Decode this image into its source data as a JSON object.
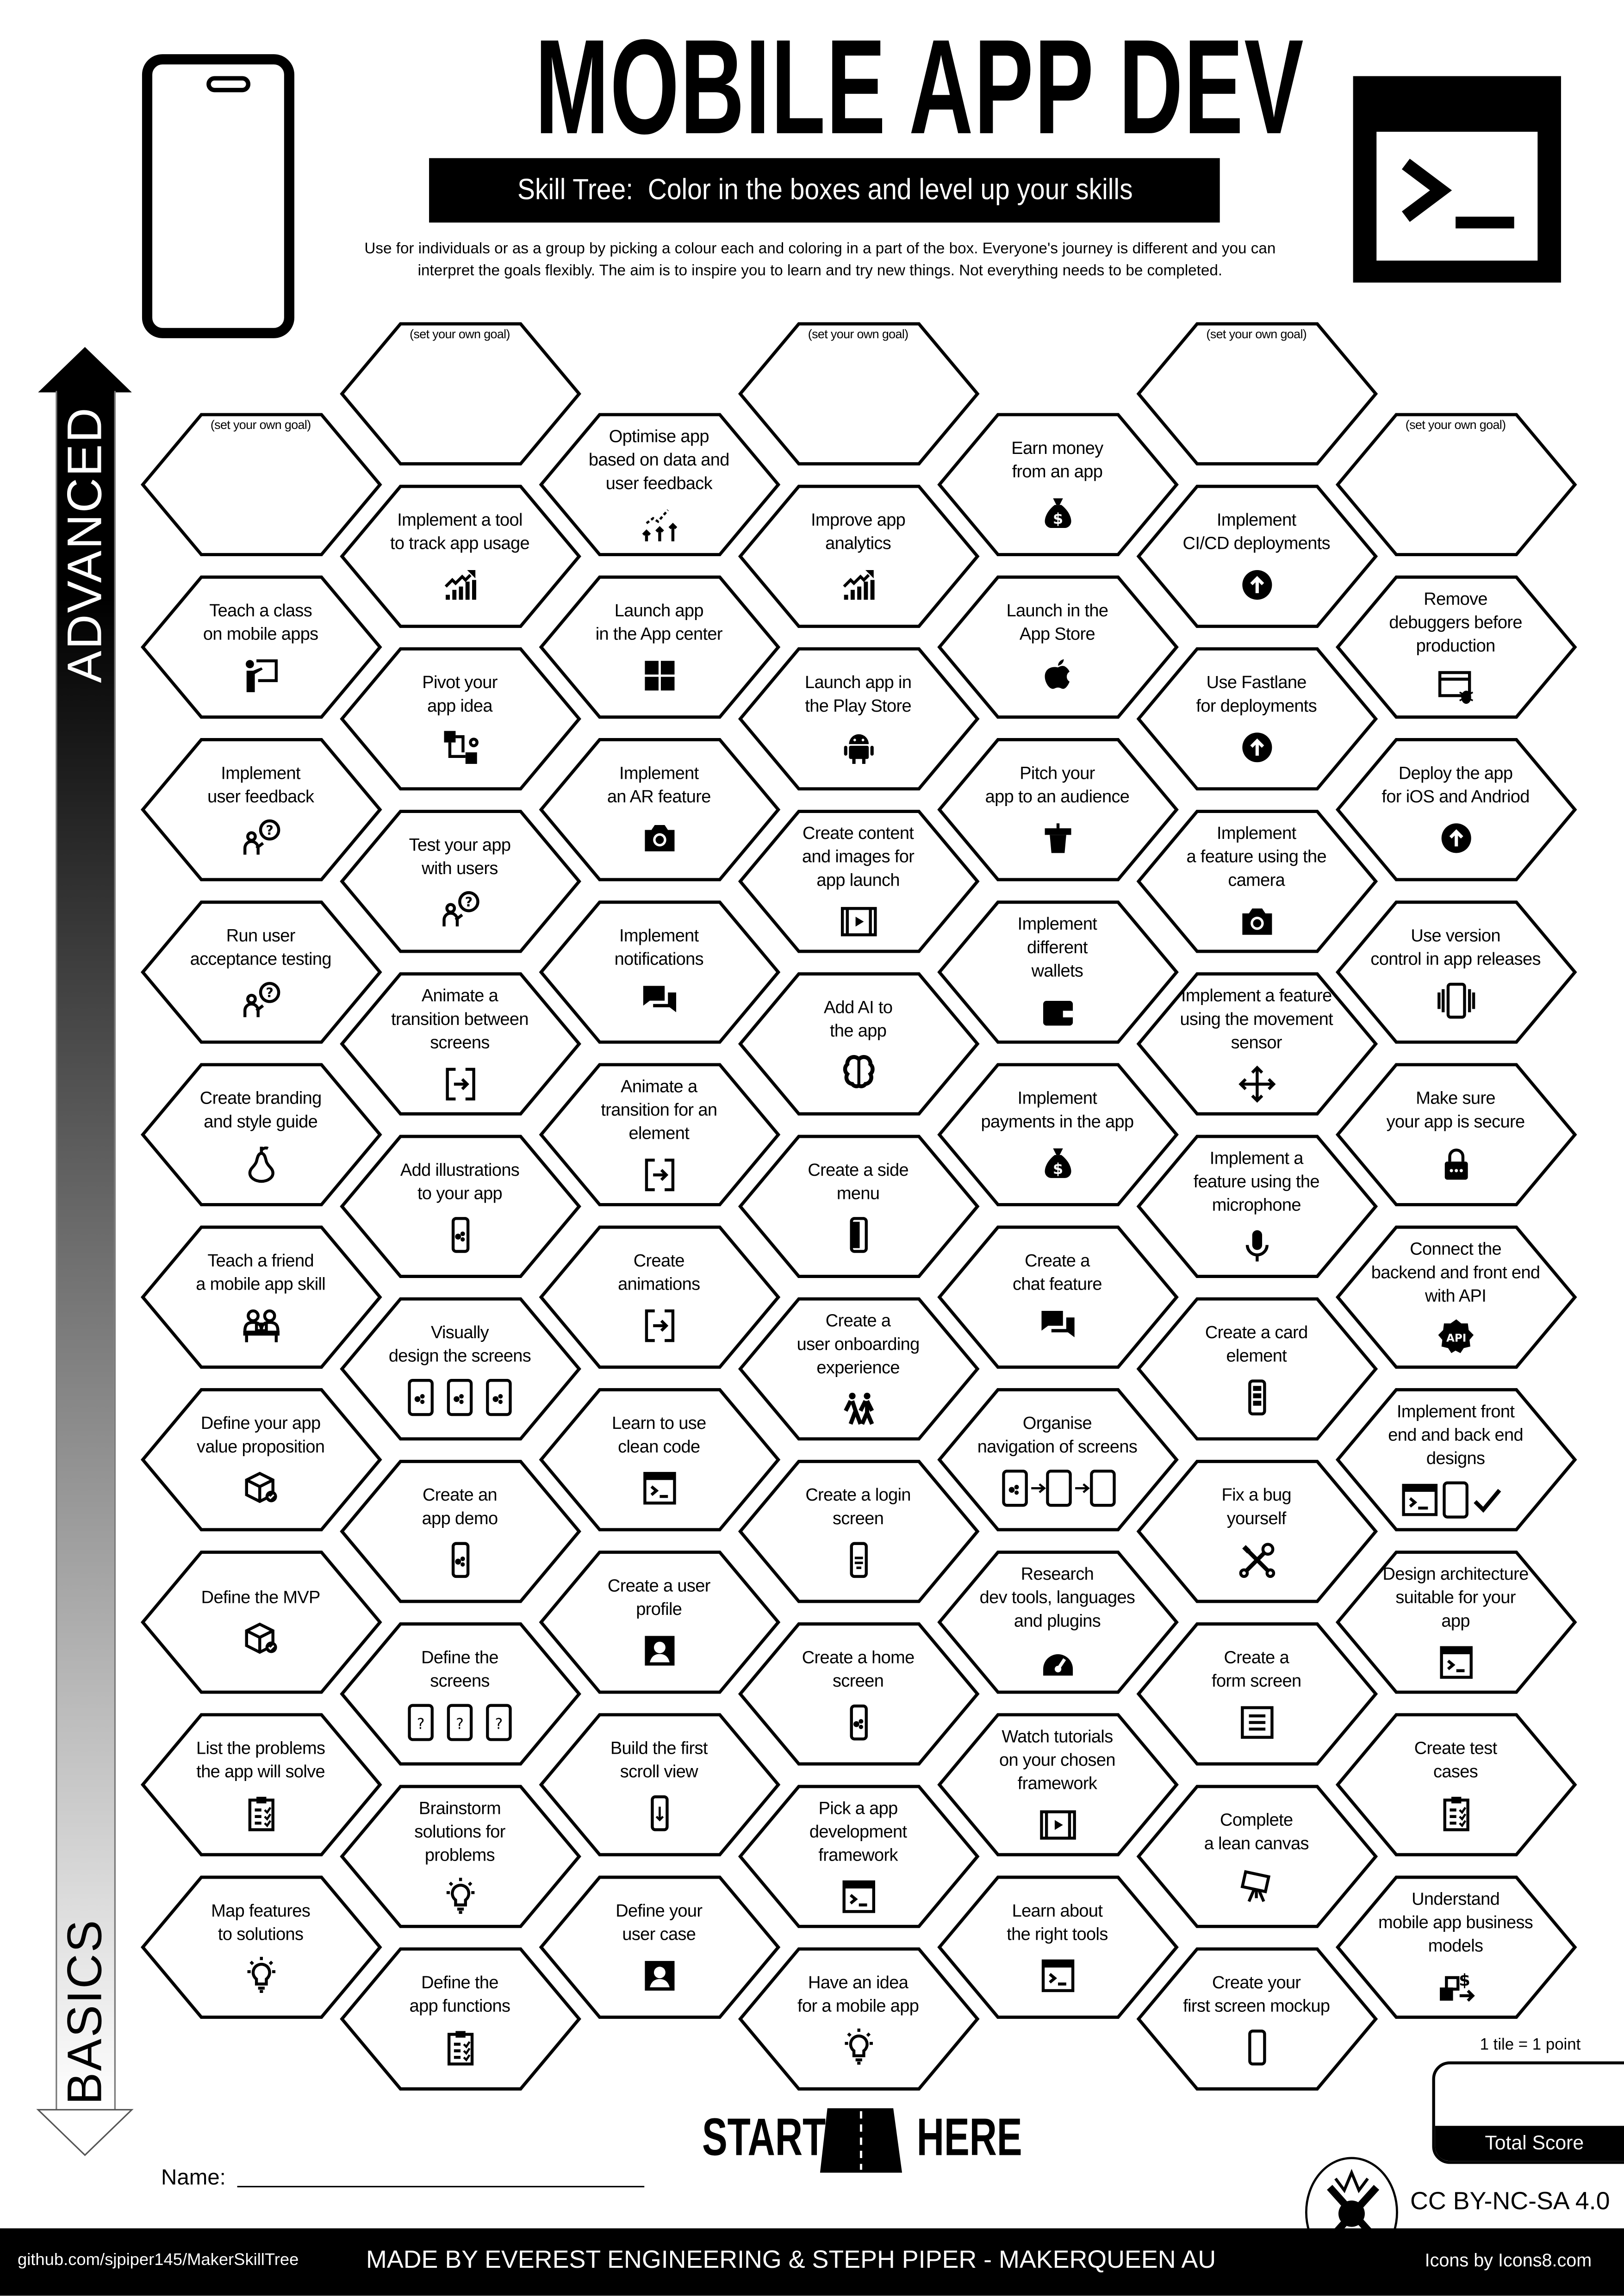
{
  "header": {
    "title": "MOBILE APP DEV",
    "subtitle": "Skill Tree:  Color in the boxes and level up your skills",
    "intro_line1": "Use for individuals or as a group by picking a colour each and coloring in a part of the box.  Everyone's journey is different and you can",
    "intro_line2": "interpret the goals flexibly.  The aim is to inspire you to learn and try new things. Not everything needs to be completed.",
    "left_icon": "smartphone-icon",
    "right_icon": "terminal-icon"
  },
  "progress_arrow": {
    "top_label": "ADVANCED",
    "bottom_label": "BASICS"
  },
  "columns": [
    {
      "hexes": [
        {
          "label": "(set your own goal)",
          "icon": ""
        },
        {
          "label": "Teach a class\non mobile apps",
          "icon": "presenter"
        },
        {
          "label": "Implement\nuser feedback",
          "icon": "person-question"
        },
        {
          "label": "Run user\nacceptance testing",
          "icon": "person-question"
        },
        {
          "label": "Create branding\nand style guide",
          "icon": "pear"
        },
        {
          "label": "Teach a friend\na mobile app skill",
          "icon": "people-desk"
        },
        {
          "label": "Define your app\nvalue proposition",
          "icon": "box-badge"
        },
        {
          "label": "Define the MVP",
          "icon": "box-badge"
        },
        {
          "label": "List the problems\nthe app will solve",
          "icon": "clipboard-check"
        },
        {
          "label": "Map features\nto solutions",
          "icon": "lightbulb"
        }
      ]
    },
    {
      "hexes": [
        {
          "label": "(set your own goal)",
          "icon": ""
        },
        {
          "label": "Implement a tool\nto track app usage",
          "icon": "chart-up"
        },
        {
          "label": "Pivot your\napp idea",
          "icon": "workflow"
        },
        {
          "label": "Test your app\nwith users",
          "icon": "person-question"
        },
        {
          "label": "Animate a\ntransition between\nscreens",
          "icon": "enter"
        },
        {
          "label": "Add illustrations\nto your app",
          "icon": "phone-image"
        },
        {
          "label": "Visually\ndesign the screens",
          "icon": "three-phones"
        },
        {
          "label": "Create an\napp demo",
          "icon": "phone-image"
        },
        {
          "label": "Define the\nscreens",
          "icon": "three-phones-question"
        },
        {
          "label": "Brainstorm\nsolutions for\nproblems",
          "icon": "lightbulb"
        },
        {
          "label": "Define the\napp functions",
          "icon": "clipboard-check"
        }
      ]
    },
    {
      "hexes": [
        {
          "label": "Optimise app\nbased on data and\nuser feedback",
          "icon": "optimise"
        },
        {
          "label": "Launch app\nin the App center",
          "icon": "windows"
        },
        {
          "label": "Implement\nan AR feature",
          "icon": "camera"
        },
        {
          "label": "Implement\nnotifications",
          "icon": "chat"
        },
        {
          "label": "Animate a\ntransition for an\nelement",
          "icon": "enter"
        },
        {
          "label": "Create\nanimations",
          "icon": "enter"
        },
        {
          "label": "Learn to use\nclean code",
          "icon": "terminal"
        },
        {
          "label": "Create a user\nprofile",
          "icon": "user-square"
        },
        {
          "label": "Build the first\nscroll view",
          "icon": "phone-scroll"
        },
        {
          "label": "Define your\nuser case",
          "icon": "user-square"
        }
      ]
    },
    {
      "hexes": [
        {
          "label": "(set your own goal)",
          "icon": ""
        },
        {
          "label": "Improve app\nanalytics",
          "icon": "chart-up"
        },
        {
          "label": "Launch app in\nthe Play Store",
          "icon": "android"
        },
        {
          "label": "Create content\nand images for\napp launch",
          "icon": "video-frame"
        },
        {
          "label": "Add AI to\nthe app",
          "icon": "brain"
        },
        {
          "label": "Create a side\nmenu",
          "icon": "phone-side"
        },
        {
          "label": "Create a\nuser onboarding\nexperience",
          "icon": "people-run"
        },
        {
          "label": "Create a login\nscreen",
          "icon": "phone-login"
        },
        {
          "label": "Create a home\nscreen",
          "icon": "phone-image"
        },
        {
          "label": "Pick a app\ndevelopment\nframework",
          "icon": "terminal"
        },
        {
          "label": "Have an idea\nfor a mobile app",
          "icon": "lightbulb"
        }
      ]
    },
    {
      "hexes": [
        {
          "label": "Earn money\nfrom an app",
          "icon": "money-bag"
        },
        {
          "label": "Launch in the\nApp Store",
          "icon": "apple"
        },
        {
          "label": "Pitch your\napp to an audience",
          "icon": "podium"
        },
        {
          "label": "Implement\ndifferent\nwallets",
          "icon": "wallet"
        },
        {
          "label": "Implement\npayments in the app",
          "icon": "money-bag"
        },
        {
          "label": "Create a\nchat feature",
          "icon": "chat"
        },
        {
          "label": "Organise\nnavigation of screens",
          "icon": "phones-arrows"
        },
        {
          "label": "Research\ndev tools, languages\nand plugins",
          "icon": "gauge"
        },
        {
          "label": "Watch tutorials\non your chosen\nframework",
          "icon": "video-frame"
        },
        {
          "label": "Learn about\nthe right tools",
          "icon": "terminal"
        }
      ]
    },
    {
      "hexes": [
        {
          "label": "(set your own goal)",
          "icon": ""
        },
        {
          "label": "Implement\nCI/CD deployments",
          "icon": "up-circle"
        },
        {
          "label": "Use Fastlane\nfor deployments",
          "icon": "up-circle"
        },
        {
          "label": "Implement\na feature using the\ncamera",
          "icon": "camera"
        },
        {
          "label": "Implement a feature\nusing the movement\nsensor",
          "icon": "move-arrows"
        },
        {
          "label": "Implement a\nfeature using the\nmicrophone",
          "icon": "microphone"
        },
        {
          "label": "Create a card\nelement",
          "icon": "phone-cards"
        },
        {
          "label": "Fix a bug\nyourself",
          "icon": "tools"
        },
        {
          "label": "Create a\nform screen",
          "icon": "form"
        },
        {
          "label": "Complete\na lean canvas",
          "icon": "easel"
        },
        {
          "label": "Create your\nfirst screen mockup",
          "icon": "phone"
        }
      ]
    },
    {
      "hexes": [
        {
          "label": "(set your own goal)",
          "icon": ""
        },
        {
          "label": "Remove\ndebuggers before\nproduction",
          "icon": "browser-bug"
        },
        {
          "label": "Deploy the app\nfor iOS and Andriod",
          "icon": "up-circle"
        },
        {
          "label": "Use version\ncontrol in app releases",
          "icon": "phones-stack"
        },
        {
          "label": "Make sure\nyour app is secure",
          "icon": "lock"
        },
        {
          "label": "Connect the\nbackend and front end\nwith API",
          "icon": "api-badge"
        },
        {
          "label": "Implement front\nend and back end\ndesigns",
          "icon": "terminal-check"
        },
        {
          "label": "Design architecture\nsuitable for your\napp",
          "icon": "terminal"
        },
        {
          "label": "Create test\ncases",
          "icon": "clipboard-check"
        },
        {
          "label": "Understand\nmobile app business\nmodels",
          "icon": "boxes-dollar"
        }
      ]
    }
  ],
  "start": {
    "left": "START",
    "right": "HERE",
    "icon": "road-icon"
  },
  "name_label": "Name:",
  "score": {
    "note": "1 tile = 1 point",
    "label": "Total Score"
  },
  "license": "CC BY-NC-SA 4.0",
  "footer": {
    "github": "github.com/sjpiper145/MakerSkillTree",
    "made_by": "MADE BY EVEREST ENGINEERING & STEPH PIPER  -  MAKERQUEEN AU",
    "icons_credit": "Icons by Icons8.com"
  },
  "colors": {
    "ink": "#000000",
    "paper": "#ffffff"
  }
}
